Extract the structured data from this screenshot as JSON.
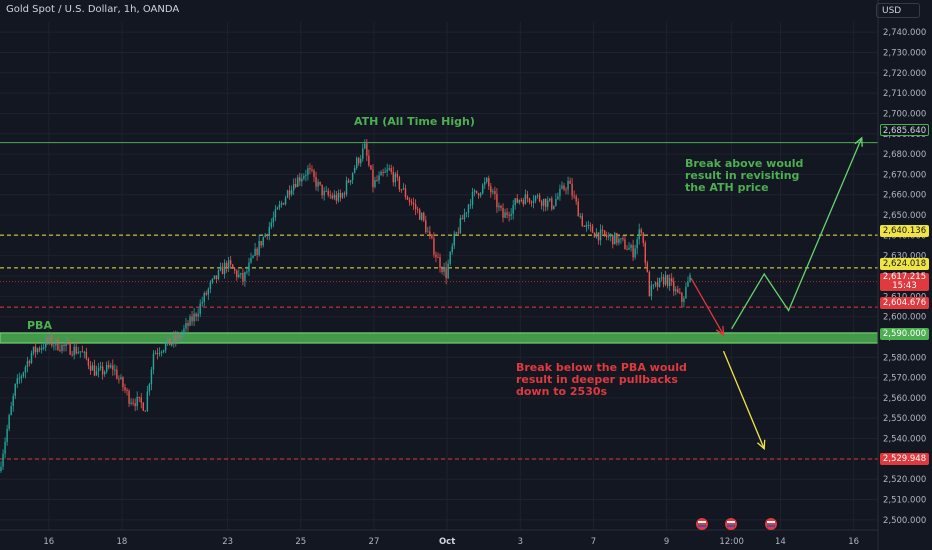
{
  "header": {
    "title": "Gold Spot / U.S. Dollar, 1h, OANDA"
  },
  "axis": {
    "currency": "USD"
  },
  "annotations": {
    "ath": "ATH (All Time High)",
    "pba": "PBA",
    "break_above": [
      "Break above would",
      "result in revisiting",
      "the ATH price"
    ],
    "break_below": [
      "Break below the PBA would",
      "result in deeper pullbacks",
      "down to 2530s"
    ]
  },
  "colors": {
    "background": "#131722",
    "green": "#4caf50",
    "red": "#e0393e",
    "yellow": "#f0e442",
    "grid": "#1e222d",
    "candle_up": "#26a69a",
    "candle_down": "#ef5350"
  },
  "price_badges": [
    {
      "label": "2,685.640",
      "style": "green-outline"
    },
    {
      "label": "2,640.136",
      "style": "yellow"
    },
    {
      "label": "2,624.018",
      "style": "yellow"
    },
    {
      "label": "2,617.215",
      "sub": "15:43",
      "style": "red"
    },
    {
      "label": "2,604.676",
      "style": "red"
    },
    {
      "label": "2,590.000",
      "style": "green"
    },
    {
      "label": "2,529.948",
      "style": "red"
    }
  ],
  "chart_data": {
    "type": "line",
    "title": "Gold Spot / U.S. Dollar, 1h, OANDA",
    "ylim": [
      2495,
      2745
    ],
    "y_ticks": [
      "2,740.000",
      "2,730.000",
      "2,720.000",
      "2,710.000",
      "2,700.000",
      "2,690.000",
      "2,680.000",
      "2,670.000",
      "2,660.000",
      "2,650.000",
      "2,640.000",
      "2,630.000",
      "2,620.000",
      "2,610.000",
      "2,600.000",
      "2,590.000",
      "2,580.000",
      "2,570.000",
      "2,560.000",
      "2,550.000",
      "2,540.000",
      "2,530.000",
      "2,520.000",
      "2,510.000",
      "2,500.000"
    ],
    "y_tick_values": [
      2740,
      2730,
      2720,
      2710,
      2700,
      2690,
      2680,
      2670,
      2660,
      2650,
      2640,
      2630,
      2620,
      2610,
      2600,
      2590,
      2580,
      2570,
      2560,
      2550,
      2540,
      2530,
      2520,
      2510,
      2500
    ],
    "x_ticks": [
      "16",
      "18",
      "23",
      "25",
      "27",
      "Oct",
      "3",
      "7",
      "9",
      "12:00",
      "14",
      "16"
    ],
    "x_tick_index": [
      6,
      15,
      28,
      37,
      46,
      55,
      64,
      73,
      82,
      90,
      96,
      105
    ],
    "x_len": 108,
    "series": [
      {
        "type": "price",
        "x": [
          0,
          2,
          4,
          6,
          8,
          10,
          12,
          14,
          16,
          18,
          19,
          20,
          22,
          24,
          26,
          28,
          30,
          32,
          34,
          36,
          38,
          40,
          42,
          44,
          45,
          46,
          48,
          50,
          52,
          54,
          55,
          56,
          58,
          60,
          62,
          64,
          66,
          68,
          70,
          72,
          74,
          76,
          78,
          79,
          80,
          82,
          84,
          85
        ],
        "values": [
          2524,
          2565,
          2582,
          2588,
          2585,
          2583,
          2572,
          2575,
          2560,
          2556,
          2582,
          2585,
          2589,
          2600,
          2615,
          2626,
          2618,
          2635,
          2650,
          2665,
          2672,
          2660,
          2658,
          2676,
          2683,
          2665,
          2672,
          2660,
          2649,
          2628,
          2621,
          2638,
          2658,
          2666,
          2649,
          2658,
          2659,
          2655,
          2666,
          2644,
          2640,
          2638,
          2632,
          2644,
          2612,
          2619,
          2608,
          2619
        ]
      }
    ],
    "levels": [
      {
        "name": "ATH",
        "value": 2685.64,
        "style": "solid-green"
      },
      {
        "value": 2640.136,
        "style": "dashed-yellow"
      },
      {
        "value": 2624.018,
        "style": "dashed-yellow"
      },
      {
        "value": 2617.215,
        "style": "dotted-red"
      },
      {
        "value": 2604.676,
        "style": "dashed-red"
      },
      {
        "name": "PBA",
        "value": 2589.5,
        "band": [
          2587,
          2592
        ],
        "style": "band-green"
      },
      {
        "value": 2529.948,
        "style": "dashed-red"
      }
    ],
    "projections": [
      {
        "color": "red",
        "points": [
          [
            85,
            2619
          ],
          [
            89,
            2591
          ]
        ]
      },
      {
        "color": "green",
        "points": [
          [
            90,
            2594
          ],
          [
            94,
            2621
          ],
          [
            97,
            2603
          ],
          [
            106,
            2688
          ]
        ]
      },
      {
        "color": "yellow",
        "points": [
          [
            89,
            2583
          ],
          [
            94,
            2535
          ]
        ]
      }
    ]
  }
}
